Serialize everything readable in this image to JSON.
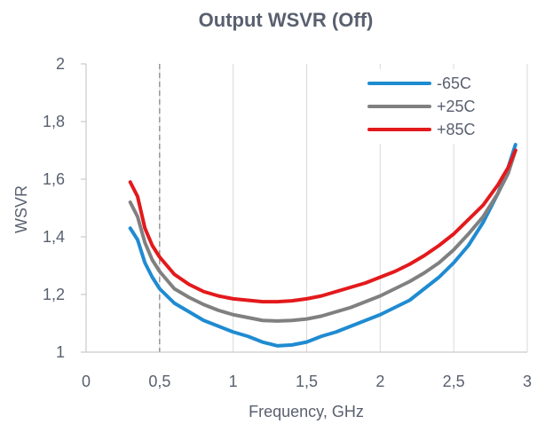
{
  "chart_data": {
    "type": "line",
    "title": "Output WSVR (Off)",
    "xlabel": "Frequency, GHz",
    "ylabel": "WSVR",
    "xlim": [
      0,
      3
    ],
    "ylim": [
      1,
      2
    ],
    "x_ticks": [
      "0",
      "0,5",
      "1",
      "1,5",
      "2",
      "2,5",
      "3"
    ],
    "y_ticks": [
      "1",
      "1,2",
      "1,4",
      "1,6",
      "1,8",
      "2"
    ],
    "x_tick_values": [
      0,
      0.5,
      1,
      1.5,
      2,
      2.5,
      3
    ],
    "y_tick_values": [
      1,
      1.2,
      1.4,
      1.6,
      1.8,
      2
    ],
    "grid": "vertical",
    "reference_line_x": 0.5,
    "legend_position": "top-right",
    "series": [
      {
        "name": "-65C",
        "color": "#1f8bd1",
        "points": [
          [
            0.3,
            1.43
          ],
          [
            0.35,
            1.39
          ],
          [
            0.4,
            1.31
          ],
          [
            0.45,
            1.26
          ],
          [
            0.5,
            1.22
          ],
          [
            0.6,
            1.17
          ],
          [
            0.7,
            1.14
          ],
          [
            0.8,
            1.11
          ],
          [
            0.9,
            1.09
          ],
          [
            1.0,
            1.07
          ],
          [
            1.1,
            1.055
          ],
          [
            1.2,
            1.035
          ],
          [
            1.3,
            1.022
          ],
          [
            1.4,
            1.025
          ],
          [
            1.5,
            1.035
          ],
          [
            1.6,
            1.055
          ],
          [
            1.7,
            1.07
          ],
          [
            1.8,
            1.09
          ],
          [
            1.9,
            1.11
          ],
          [
            2.0,
            1.13
          ],
          [
            2.1,
            1.155
          ],
          [
            2.2,
            1.18
          ],
          [
            2.3,
            1.22
          ],
          [
            2.4,
            1.26
          ],
          [
            2.5,
            1.31
          ],
          [
            2.6,
            1.37
          ],
          [
            2.7,
            1.45
          ],
          [
            2.8,
            1.55
          ],
          [
            2.87,
            1.64
          ],
          [
            2.92,
            1.72
          ]
        ]
      },
      {
        "name": "+25C",
        "color": "#808080",
        "points": [
          [
            0.3,
            1.52
          ],
          [
            0.35,
            1.47
          ],
          [
            0.4,
            1.38
          ],
          [
            0.45,
            1.32
          ],
          [
            0.5,
            1.28
          ],
          [
            0.6,
            1.22
          ],
          [
            0.7,
            1.19
          ],
          [
            0.8,
            1.165
          ],
          [
            0.9,
            1.145
          ],
          [
            1.0,
            1.13
          ],
          [
            1.1,
            1.12
          ],
          [
            1.2,
            1.11
          ],
          [
            1.3,
            1.108
          ],
          [
            1.4,
            1.11
          ],
          [
            1.5,
            1.115
          ],
          [
            1.6,
            1.125
          ],
          [
            1.7,
            1.14
          ],
          [
            1.8,
            1.155
          ],
          [
            1.9,
            1.175
          ],
          [
            2.0,
            1.195
          ],
          [
            2.1,
            1.22
          ],
          [
            2.2,
            1.245
          ],
          [
            2.3,
            1.275
          ],
          [
            2.4,
            1.31
          ],
          [
            2.5,
            1.355
          ],
          [
            2.6,
            1.41
          ],
          [
            2.7,
            1.47
          ],
          [
            2.8,
            1.55
          ],
          [
            2.87,
            1.62
          ],
          [
            2.92,
            1.7
          ]
        ]
      },
      {
        "name": "+85C",
        "color": "#e3191c",
        "points": [
          [
            0.3,
            1.59
          ],
          [
            0.35,
            1.54
          ],
          [
            0.4,
            1.43
          ],
          [
            0.45,
            1.37
          ],
          [
            0.5,
            1.33
          ],
          [
            0.6,
            1.27
          ],
          [
            0.7,
            1.235
          ],
          [
            0.8,
            1.21
          ],
          [
            0.9,
            1.195
          ],
          [
            1.0,
            1.185
          ],
          [
            1.1,
            1.18
          ],
          [
            1.2,
            1.175
          ],
          [
            1.3,
            1.175
          ],
          [
            1.4,
            1.178
          ],
          [
            1.5,
            1.185
          ],
          [
            1.6,
            1.195
          ],
          [
            1.7,
            1.21
          ],
          [
            1.8,
            1.225
          ],
          [
            1.9,
            1.24
          ],
          [
            2.0,
            1.26
          ],
          [
            2.1,
            1.28
          ],
          [
            2.2,
            1.305
          ],
          [
            2.3,
            1.335
          ],
          [
            2.4,
            1.37
          ],
          [
            2.5,
            1.41
          ],
          [
            2.6,
            1.46
          ],
          [
            2.7,
            1.51
          ],
          [
            2.8,
            1.58
          ],
          [
            2.87,
            1.64
          ],
          [
            2.92,
            1.7
          ]
        ]
      }
    ]
  }
}
